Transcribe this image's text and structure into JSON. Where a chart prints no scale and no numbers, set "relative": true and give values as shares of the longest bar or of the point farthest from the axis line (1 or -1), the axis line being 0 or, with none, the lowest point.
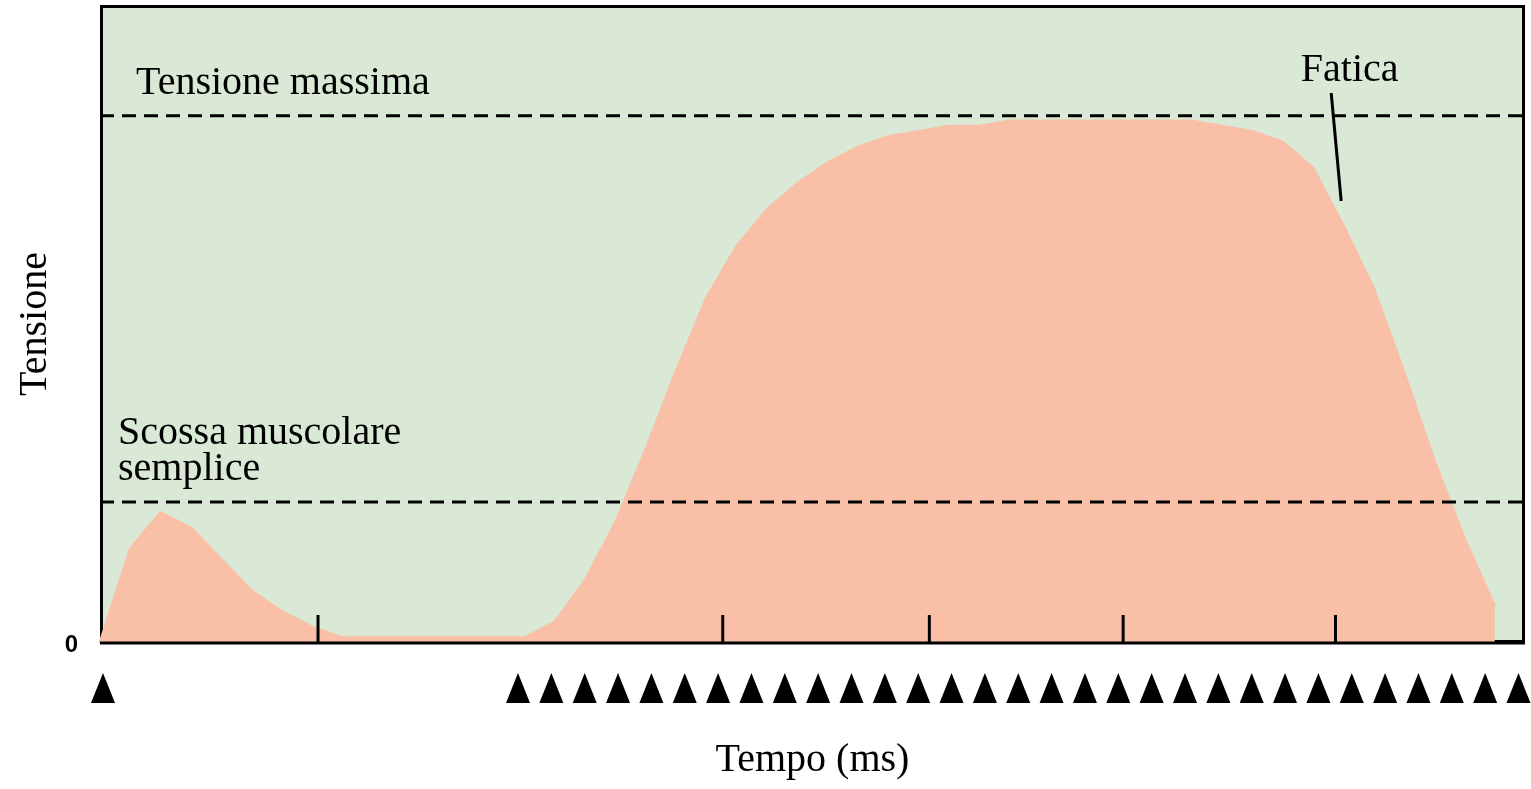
{
  "chart_data": {
    "type": "area",
    "relative": true,
    "xlabel": "Tempo (ms)",
    "ylabel": "Tensione",
    "color": "#f9bfa7",
    "categories": [
      null,
      null,
      null,
      null,
      null,
      null,
      null,
      null,
      null,
      null,
      null,
      null,
      null,
      null,
      null,
      null,
      null,
      null,
      null,
      null,
      null,
      null,
      null,
      null,
      null,
      null,
      null,
      null,
      null,
      null,
      null,
      null,
      null,
      null,
      null,
      null,
      null,
      null,
      null,
      null,
      null,
      null,
      null,
      null,
      null,
      null,
      null,
      null
    ],
    "values": [
      0,
      0.18,
      0.25,
      0.22,
      0.16,
      0.1,
      0.06,
      0.03,
      0.01,
      0.01,
      0.01,
      0.01,
      0.01,
      0.01,
      0.01,
      0.04,
      0.12,
      0.23,
      0.37,
      0.52,
      0.66,
      0.76,
      0.83,
      0.88,
      0.92,
      0.95,
      0.97,
      0.98,
      0.99,
      0.99,
      1.0,
      1.0,
      1.0,
      1.0,
      1.0,
      1.0,
      1.0,
      0.99,
      0.98,
      0.96,
      0.91,
      0.8,
      0.68,
      0.52,
      0.35,
      0.2,
      0.07,
      null
    ],
    "ref_lines": [
      {
        "axis": "y",
        "value": 1.01,
        "label": "Tensione massima",
        "line_style": "dashed",
        "color": "#000000"
      },
      {
        "axis": "y",
        "value": 0.27,
        "label": "Scossa muscolare semplice",
        "line_style": "dashed",
        "color": "#000000"
      }
    ],
    "annotations": [
      "0",
      "Fatica"
    ],
    "marker": "none"
  }
}
